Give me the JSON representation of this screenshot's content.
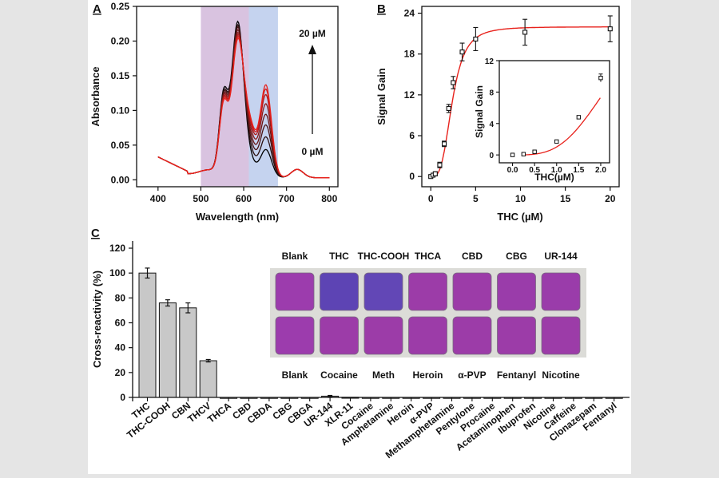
{
  "chart_data": [
    {
      "id": "A",
      "type": "line",
      "panel_label": "A",
      "xlabel": "Wavelength (nm)",
      "ylabel": "Absorbance",
      "xlim": [
        350,
        820
      ],
      "ylim": [
        -0.01,
        0.25
      ],
      "xticks": [
        400,
        500,
        600,
        700,
        800
      ],
      "yticks": [
        "0.00",
        "0.05",
        "0.10",
        "0.15",
        "0.20",
        "0.25"
      ],
      "shaded_bands": [
        {
          "name": "band-1",
          "x_range": [
            500,
            612
          ],
          "color": "#d9c3e0"
        },
        {
          "name": "band-2",
          "x_range": [
            612,
            680
          ],
          "color": "#c5d3ef"
        }
      ],
      "annotations": {
        "top": "20 µM",
        "bottom": "0 µM"
      },
      "series": [
        {
          "name": "0 µM",
          "peak585": 0.222,
          "peak555": 0.14,
          "peak650": 0.04,
          "color": "#000000"
        },
        {
          "name": "step-2",
          "peak585": 0.216,
          "peak555": 0.137,
          "peak650": 0.058,
          "color": "#2a1010"
        },
        {
          "name": "step-3",
          "peak585": 0.212,
          "peak555": 0.135,
          "peak650": 0.075,
          "color": "#4a1414"
        },
        {
          "name": "step-4",
          "peak585": 0.207,
          "peak555": 0.133,
          "peak650": 0.09,
          "color": "#6a1616"
        },
        {
          "name": "step-5",
          "peak585": 0.202,
          "peak555": 0.131,
          "peak650": 0.105,
          "color": "#8c1818"
        },
        {
          "name": "step-6",
          "peak585": 0.198,
          "peak555": 0.129,
          "peak650": 0.118,
          "color": "#b01a1a"
        },
        {
          "name": "step-7",
          "peak585": 0.195,
          "peak555": 0.127,
          "peak650": 0.126,
          "color": "#d01c1c"
        },
        {
          "name": "20 µM",
          "peak585": 0.192,
          "peak555": 0.125,
          "peak650": 0.132,
          "color": "#e8221c"
        }
      ]
    },
    {
      "id": "B",
      "type": "scatter",
      "panel_label": "B",
      "xlabel": "THC (µM)",
      "ylabel": "Signal Gain",
      "xlim": [
        -1,
        21
      ],
      "ylim": [
        -1.5,
        25
      ],
      "xticks": [
        0,
        5,
        10,
        15,
        20
      ],
      "yticks": [
        0,
        6,
        12,
        18,
        24
      ],
      "x": [
        0,
        0.25,
        0.5,
        1.0,
        1.5,
        2.0,
        2.5,
        3.5,
        5.0,
        10.5,
        20.0
      ],
      "y": [
        0.0,
        0.2,
        0.4,
        1.7,
        4.8,
        10.0,
        13.8,
        18.3,
        20.2,
        21.2,
        21.7
      ],
      "err": [
        0.2,
        0.2,
        0.3,
        0.4,
        0.4,
        0.6,
        0.9,
        1.3,
        1.7,
        1.9,
        1.9
      ],
      "fit": {
        "model": "hill",
        "smax": 22.0,
        "k": 2.4,
        "n": 3.4,
        "color": "#e8221c"
      },
      "inset": {
        "xlabel": "THC(µM)",
        "ylabel": "Signal Gain",
        "xlim": [
          -0.3,
          2.2
        ],
        "ylim": [
          -1,
          12
        ],
        "xticks": [
          "0.0",
          "0.5",
          "1.0",
          "1.5",
          "2.0"
        ],
        "yticks": [
          0,
          4,
          8,
          12
        ],
        "x": [
          0,
          0.25,
          0.5,
          1.0,
          1.5,
          2.0
        ],
        "y": [
          0.0,
          0.1,
          0.4,
          1.7,
          4.8,
          9.8
        ],
        "err": [
          0.1,
          0.1,
          0.1,
          0.2,
          0.2,
          0.5
        ]
      }
    },
    {
      "id": "C",
      "type": "bar",
      "panel_label": "C",
      "xlabel": "",
      "ylabel": "Cross-reactivity (%)",
      "ylim": [
        -5,
        125
      ],
      "yticks": [
        0,
        20,
        40,
        60,
        80,
        100,
        120
      ],
      "categories": [
        "THC",
        "THC-COOH",
        "CBN",
        "THCV",
        "THCA",
        "CBD",
        "CBDA",
        "CBG",
        "CBGA",
        "UR-144",
        "XLR-11",
        "Cocaine",
        "Amphetamine",
        "Heroin",
        "α-PVP",
        "Methamphetamine",
        "Pentylone",
        "Procaine",
        "Acetaminophen",
        "Ibuprofen",
        "Nicotine",
        "Caffeine",
        "Clonazepam",
        "Fentanyl"
      ],
      "values": [
        100,
        76,
        72,
        29.5,
        -0.4,
        -0.3,
        -0.3,
        -0.3,
        -0.4,
        1.0,
        0.1,
        -0.2,
        -0.3,
        -0.2,
        -0.2,
        -0.2,
        -0.2,
        -0.2,
        -0.2,
        -0.2,
        -0.2,
        -0.3,
        -0.3,
        -0.4
      ],
      "errors": [
        4,
        2.5,
        4,
        1,
        0.3,
        0.3,
        0.3,
        0.3,
        0.3,
        0.6,
        0.3,
        0.3,
        0.3,
        0.3,
        0.3,
        0.3,
        0.3,
        0.3,
        0.3,
        0.3,
        0.3,
        0.3,
        0.3,
        0.3
      ],
      "bar_color": "#c8c8c8"
    }
  ],
  "plate": {
    "top_labels": [
      "Blank",
      "THC",
      "THC-COOH",
      "THCA",
      "CBD",
      "CBG",
      "UR-144"
    ],
    "bottom_labels": [
      "Blank",
      "Cocaine",
      "Meth",
      "Heroin",
      "α-PVP",
      "Fentanyl",
      "Nicotine"
    ],
    "top_colors": [
      "#9c3cad",
      "#5d44b4",
      "#6247b6",
      "#9c3ca8",
      "#9c3ca8",
      "#9a3caa",
      "#9a3caa"
    ],
    "bottom_colors": [
      "#9c3cad",
      "#9c3ca8",
      "#9c3ca8",
      "#9c3ca8",
      "#9c3ca8",
      "#9c3ca8",
      "#9c3ca8"
    ]
  }
}
